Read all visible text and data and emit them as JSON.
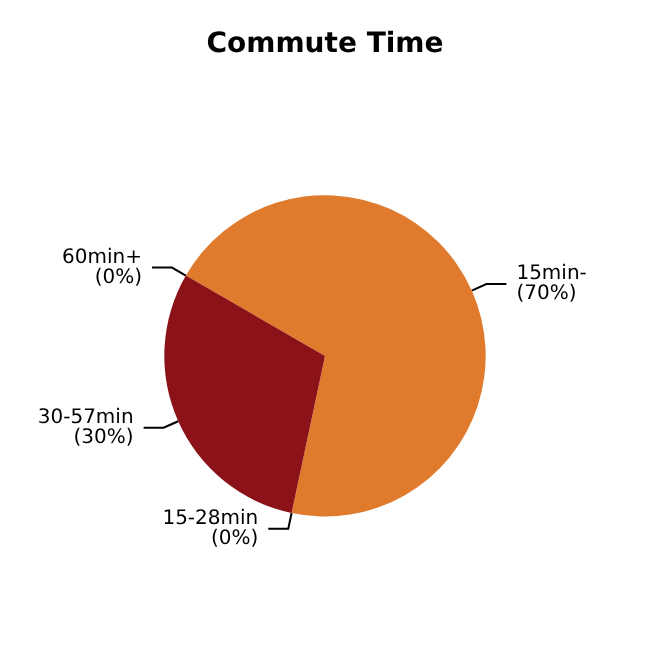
{
  "chart_data": {
    "type": "pie",
    "title": "Commute Time",
    "categories": [
      "15min-",
      "15-28min",
      "30-57min",
      "60min+"
    ],
    "values": [
      70,
      0,
      30,
      0
    ],
    "value_labels": [
      "(70%)",
      "(0%)",
      "(30%)",
      "(0%)"
    ],
    "colors": [
      "#e07b2e",
      "#c0392b",
      "#8b1218",
      "#a01c1c"
    ]
  }
}
